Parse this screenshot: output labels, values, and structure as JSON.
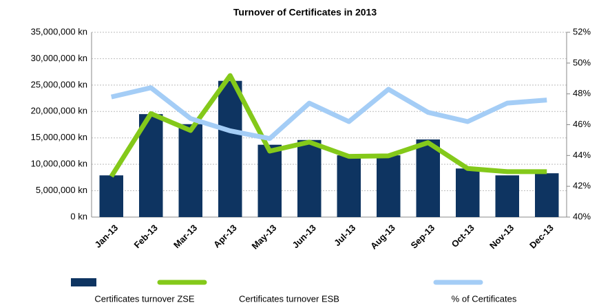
{
  "chart_data": {
    "type": "bar_line",
    "title": "Turnover of Certificates in 2013",
    "categories": [
      "Jan-13",
      "Feb-13",
      "Mar-13",
      "Apr-13",
      "May-13",
      "Jun-13",
      "Jul-13",
      "Aug-13",
      "Sep-13",
      "Oct-13",
      "Nov-13",
      "Dec-13"
    ],
    "series": [
      {
        "name": "Certificates turnover ZSE",
        "type": "bar",
        "color": "#0e3461",
        "values": [
          7900000,
          19500000,
          17600000,
          25800000,
          13700000,
          14600000,
          11700000,
          11700000,
          14700000,
          9200000,
          7900000,
          8300000
        ]
      },
      {
        "name": "Certificates turnover ESB",
        "type": "line",
        "color": "#84c91a",
        "values": [
          7700000,
          19600000,
          16400000,
          26800000,
          12500000,
          14200000,
          11500000,
          11600000,
          14100000,
          9200000,
          8600000,
          8600000
        ]
      },
      {
        "name": "% of Certificates",
        "type": "line",
        "axis": "y2",
        "color": "#a4cdf6",
        "values": [
          47.8,
          48.4,
          46.4,
          45.6,
          45.1,
          47.4,
          46.2,
          48.3,
          46.8,
          46.2,
          47.4,
          47.6
        ]
      }
    ],
    "ylim": [
      0,
      35000000
    ],
    "yticks": [
      {
        "value": 0,
        "label": "0 kn"
      },
      {
        "value": 5000000,
        "label": "5,000,000 kn"
      },
      {
        "value": 10000000,
        "label": "10,000,000 kn"
      },
      {
        "value": 15000000,
        "label": "15,000,000 kn"
      },
      {
        "value": 20000000,
        "label": "20,000,000 kn"
      },
      {
        "value": 25000000,
        "label": "25,000,000 kn"
      },
      {
        "value": 30000000,
        "label": "30,000,000 kn"
      },
      {
        "value": 35000000,
        "label": "35,000,000 kn"
      }
    ],
    "y2lim": [
      40,
      52
    ],
    "y2ticks": [
      {
        "value": 40,
        "label": "40%"
      },
      {
        "value": 42,
        "label": "42%"
      },
      {
        "value": 44,
        "label": "44%"
      },
      {
        "value": 46,
        "label": "46%"
      },
      {
        "value": 48,
        "label": "48%"
      },
      {
        "value": 50,
        "label": "50%"
      },
      {
        "value": 52,
        "label": "52%"
      }
    ],
    "grid": true,
    "legend": "bottom"
  }
}
